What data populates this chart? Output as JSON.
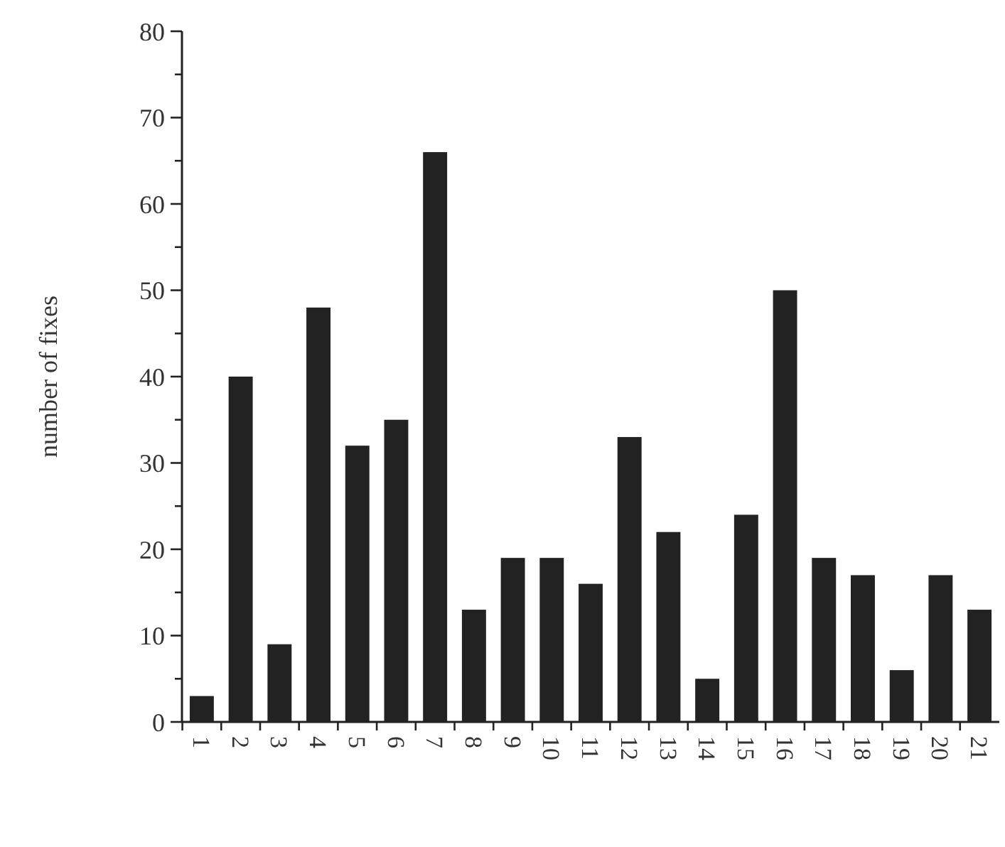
{
  "chart_data": {
    "type": "bar",
    "ylabel": "number of fixes",
    "categories": [
      "1",
      "2",
      "3",
      "4",
      "5",
      "6",
      "7",
      "8",
      "9",
      "10",
      "11",
      "12",
      "13",
      "14",
      "15",
      "16",
      "17",
      "18",
      "19",
      "20",
      "21"
    ],
    "values": [
      3,
      40,
      9,
      48,
      32,
      35,
      66,
      13,
      19,
      19,
      16,
      33,
      22,
      5,
      24,
      50,
      19,
      17,
      6,
      17,
      13
    ],
    "color": "#222222",
    "ylim": [
      0,
      80
    ],
    "yticks": [
      0,
      {
        "value": 5,
        "label": null
      },
      10,
      {
        "value": 15,
        "label": null
      },
      20,
      {
        "value": 25,
        "label": null
      },
      30,
      {
        "value": 35,
        "label": null
      },
      40,
      {
        "value": 45,
        "label": null
      },
      50,
      {
        "value": 55,
        "label": null
      },
      60,
      {
        "value": 65,
        "label": null
      },
      70,
      {
        "value": 75,
        "label": null
      },
      80
    ],
    "grid": false
  }
}
